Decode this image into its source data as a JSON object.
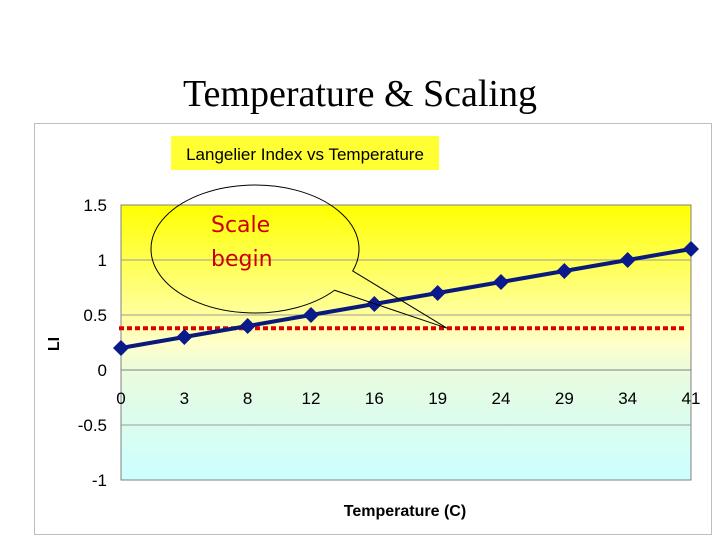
{
  "slide": {
    "title": "Temperature & Scaling"
  },
  "callout": {
    "line1": "Scale",
    "line2": "begin"
  },
  "colors": {
    "series": "#0a1a7a",
    "marker": "#0b1a8a",
    "threshold": "#dd0000",
    "title_bg": "#ffff33",
    "plot_top": "#ffff00",
    "plot_mid": "#ffffc8",
    "plot_low": "#e8fbe0",
    "plot_bottom": "#ccffff"
  },
  "chart_data": {
    "type": "line",
    "title": "Langelier Index vs Temperature",
    "xlabel": "Temperature (C)",
    "ylabel": "LI",
    "categories": [
      "0",
      "3",
      "8",
      "12",
      "16",
      "19",
      "24",
      "29",
      "34",
      "41"
    ],
    "series": [
      {
        "values": [
          0.2,
          0.3,
          0.4,
          0.5,
          0.6,
          0.7,
          0.8,
          0.9,
          1.0,
          1.1
        ]
      }
    ],
    "ylim": [
      -1,
      1.5
    ],
    "yticks": [
      "1.5",
      "1",
      "0.5",
      "0",
      "-0.5",
      "-1"
    ],
    "ytick_values": [
      1.5,
      1,
      0.5,
      0,
      -0.5,
      -1
    ],
    "threshold": 0.38,
    "grid": true,
    "legend": "none"
  }
}
